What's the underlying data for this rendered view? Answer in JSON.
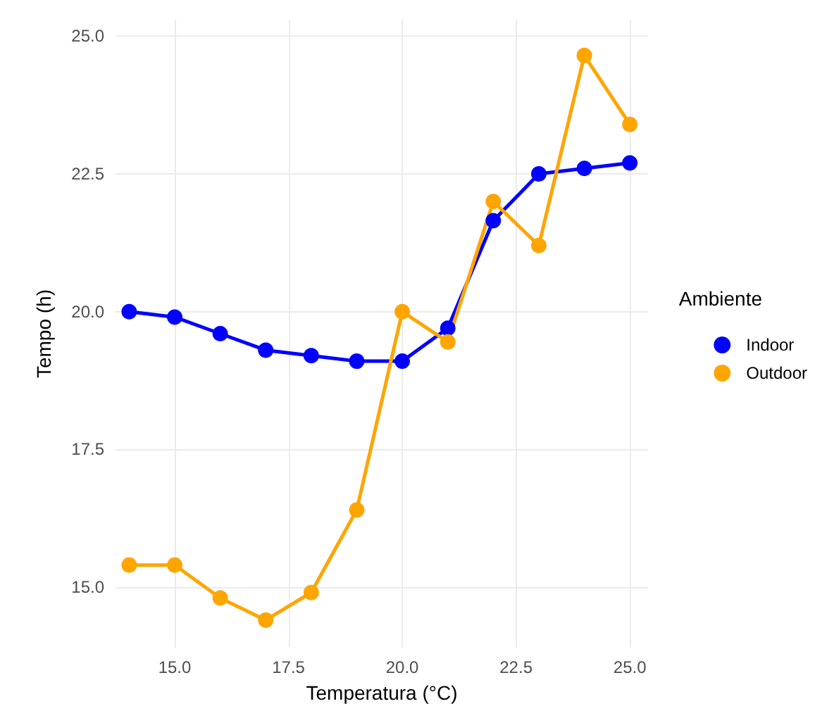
{
  "chart_data": {
    "type": "line",
    "xlabel": "Temperatura (°C)",
    "ylabel": "Tempo (h)",
    "legend_title": "Ambiente",
    "legend": "right",
    "grid": true,
    "marker": "circle",
    "line_style": "solid",
    "xlim": [
      13.7,
      25.4
    ],
    "xticks": [
      {
        "value": 15,
        "label": "15.0"
      },
      {
        "value": 17.5,
        "label": "17.5"
      },
      {
        "value": 20,
        "label": "20.0"
      },
      {
        "value": 22.5,
        "label": "22.5"
      },
      {
        "value": 25,
        "label": "25.0"
      }
    ],
    "ylim": [
      13.9,
      25.3
    ],
    "yticks": [
      {
        "value": 15,
        "label": "15.0"
      },
      {
        "value": 17.5,
        "label": "17.5"
      },
      {
        "value": 20,
        "label": "20.0"
      },
      {
        "value": 22.5,
        "label": "22.5"
      },
      {
        "value": 25,
        "label": "25.0"
      }
    ],
    "x": [
      14,
      15,
      16,
      17,
      18,
      19,
      20,
      21,
      22,
      23,
      24,
      25
    ],
    "series": [
      {
        "name": "Indoor",
        "color": "#0000ff",
        "values": [
          20.0,
          19.9,
          19.6,
          19.3,
          19.2,
          19.1,
          19.1,
          19.7,
          21.65,
          22.5,
          22.6,
          22.7
        ]
      },
      {
        "name": "Outdoor",
        "color": "#ffa500",
        "values": [
          15.4,
          15.4,
          14.8,
          14.4,
          14.9,
          16.4,
          20.0,
          19.45,
          22.0,
          21.2,
          24.65,
          23.4
        ]
      }
    ]
  }
}
